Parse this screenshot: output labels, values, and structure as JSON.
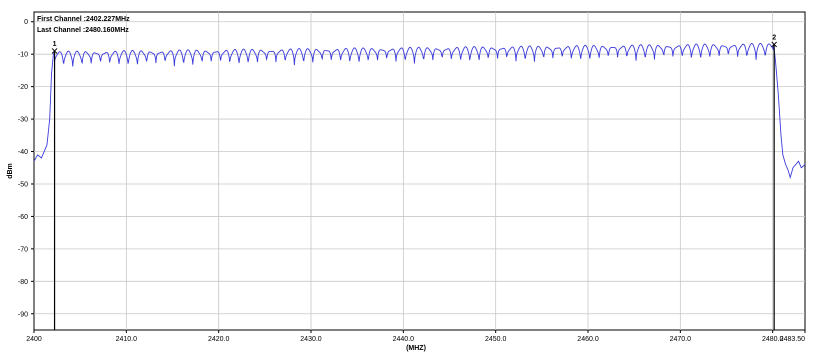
{
  "chart_data": {
    "type": "line",
    "xlabel": "(MHZ)",
    "ylabel": "dBm",
    "xlim": [
      2400,
      2483.5
    ],
    "ylim": [
      -95,
      3
    ],
    "x_ticks": [
      2400,
      2410,
      2420,
      2430,
      2440,
      2450,
      2460,
      2470,
      2480,
      2483.5
    ],
    "x_tick_labels": [
      "2400",
      "2410.0",
      "2420.0",
      "2430.0",
      "2440.0",
      "2450.0",
      "2460.0",
      "2470.0",
      "2480.0",
      "2483.50"
    ],
    "y_ticks": [
      0,
      -10,
      -20,
      -30,
      -40,
      -50,
      -60,
      -70,
      -80,
      -90
    ],
    "y_tick_labels": [
      "0",
      "-10",
      "-20",
      "-30",
      "-40",
      "-50",
      "-60",
      "-70",
      "-80",
      "-90"
    ],
    "grid": true,
    "annotations": [
      "First Channel :2402.227MHz",
      "Last Channel :2480.160MHz"
    ],
    "markers": [
      {
        "label": "1",
        "x": 2402.227,
        "y": -9
      },
      {
        "label": "2",
        "x": 2480.16,
        "y": -7
      }
    ],
    "series": [
      {
        "color": "#3b3bdc",
        "envelope": {
          "start_x": 2402.2,
          "start_y": -9.5,
          "end_x": 2480.1,
          "end_y": -7,
          "ripple_period": 1.0,
          "ripple_depth": 5
        },
        "points": [
          [
            2400.0,
            -43
          ],
          [
            2400.4,
            -41
          ],
          [
            2400.8,
            -42
          ],
          [
            2401.1,
            -40
          ],
          [
            2401.4,
            -38
          ],
          [
            2401.7,
            -30
          ],
          [
            2401.9,
            -16
          ],
          [
            2402.1,
            -10
          ],
          [
            2402.2,
            -9.5
          ],
          [
            2480.1,
            -7
          ],
          [
            2480.3,
            -12
          ],
          [
            2480.6,
            -22
          ],
          [
            2480.9,
            -35
          ],
          [
            2481.1,
            -41
          ],
          [
            2481.4,
            -44
          ],
          [
            2481.7,
            -46
          ],
          [
            2481.9,
            -48
          ],
          [
            2482.2,
            -45
          ],
          [
            2482.5,
            -44
          ],
          [
            2482.8,
            -43
          ],
          [
            2483.1,
            -45
          ],
          [
            2483.5,
            -44
          ]
        ]
      }
    ]
  }
}
